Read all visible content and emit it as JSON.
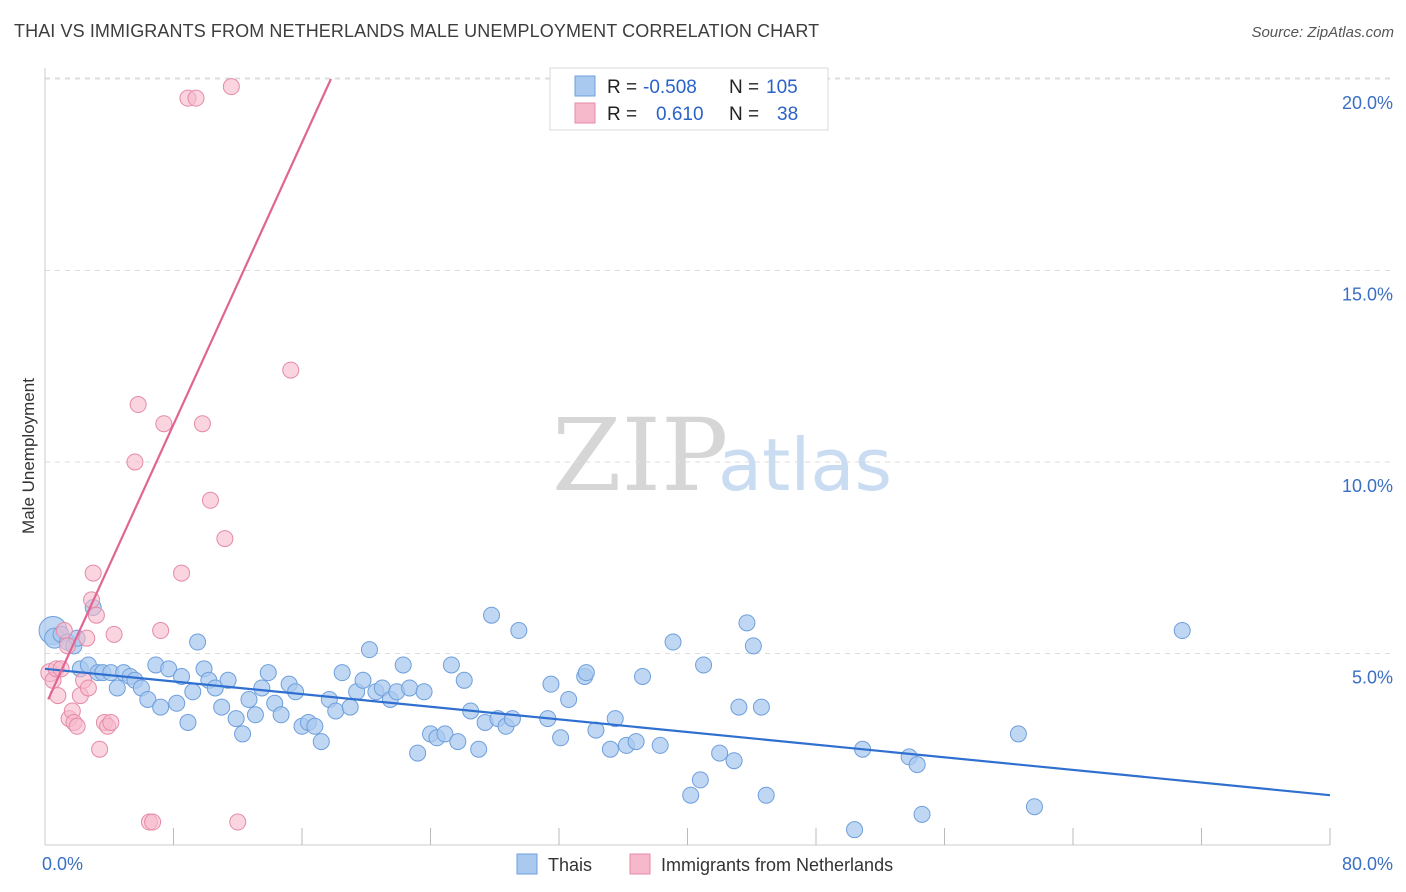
{
  "header": {
    "title": "THAI VS IMMIGRANTS FROM NETHERLANDS MALE UNEMPLOYMENT CORRELATION CHART",
    "source": "Source: ZipAtlas.com"
  },
  "watermark": {
    "zip": "ZIP",
    "atlas": "atlas"
  },
  "legend": {
    "rows": [
      {
        "r_label": "R =",
        "r_value": "-0.508",
        "n_label": "N =",
        "n_value": "105",
        "color": "#aac9ef"
      },
      {
        "r_label": "R =",
        "r_value": "0.610",
        "n_label": "N =",
        "n_value": "38",
        "color": "#f6b9cc"
      }
    ]
  },
  "bottom_legend": [
    {
      "label": "Thais",
      "color": "#aac9ef"
    },
    {
      "label": "Immigrants from Netherlands",
      "color": "#f6b9cc"
    }
  ],
  "colors": {
    "blue_fill": "#aac9ef",
    "blue_stroke": "#6f9fdc",
    "blue_line": "#2f6fd0",
    "pink_fill": "#f6b9cc",
    "pink_stroke": "#e58aa8",
    "pink_line": "#e06592",
    "grid": "#dddddd",
    "tick_text": "#3a6fc4"
  },
  "chart_data": {
    "type": "scatter",
    "title": "THAI VS IMMIGRANTS FROM NETHERLANDS MALE UNEMPLOYMENT CORRELATION CHART",
    "xlabel": "",
    "ylabel": "Male Unemployment",
    "xlim": [
      0,
      80
    ],
    "ylim": [
      0,
      20
    ],
    "x_tick_labels": [
      {
        "value": 0,
        "label": "0.0%"
      },
      {
        "value": 80,
        "label": "80.0%"
      }
    ],
    "x_minor_ticks": [
      8,
      16,
      24,
      32,
      40,
      48,
      56,
      64,
      72,
      80
    ],
    "y_ticks": [
      {
        "value": 5,
        "label": "5.0%"
      },
      {
        "value": 10,
        "label": "10.0%"
      },
      {
        "value": 15,
        "label": "15.0%"
      },
      {
        "value": 20,
        "label": "20.0%"
      }
    ],
    "grid": true,
    "legend_position": "top-center",
    "series": [
      {
        "name": "Thais",
        "color": "#aac9ef",
        "trend": {
          "x": [
            0,
            80
          ],
          "y": [
            4.6,
            1.3
          ]
        },
        "points": [
          [
            0.5,
            5.6,
            14
          ],
          [
            0.6,
            5.4,
            10
          ],
          [
            1.0,
            5.5,
            8
          ],
          [
            1.4,
            5.3,
            8
          ],
          [
            1.8,
            5.2,
            8
          ],
          [
            2.0,
            5.4,
            8
          ],
          [
            2.2,
            4.6,
            8
          ],
          [
            2.7,
            4.7,
            8
          ],
          [
            3.0,
            6.2,
            8
          ],
          [
            3.3,
            4.5,
            8
          ],
          [
            3.6,
            4.5,
            8
          ],
          [
            4.1,
            4.5,
            8
          ],
          [
            4.5,
            4.1,
            8
          ],
          [
            4.9,
            4.5,
            8
          ],
          [
            5.3,
            4.4,
            8
          ],
          [
            5.6,
            4.3,
            8
          ],
          [
            6.0,
            4.1,
            8
          ],
          [
            6.4,
            3.8,
            8
          ],
          [
            6.9,
            4.7,
            8
          ],
          [
            7.2,
            3.6,
            8
          ],
          [
            7.7,
            4.6,
            8
          ],
          [
            8.2,
            3.7,
            8
          ],
          [
            8.5,
            4.4,
            8
          ],
          [
            8.9,
            3.2,
            8
          ],
          [
            9.2,
            4.0,
            8
          ],
          [
            9.5,
            5.3,
            8
          ],
          [
            9.9,
            4.6,
            8
          ],
          [
            10.2,
            4.3,
            8
          ],
          [
            10.6,
            4.1,
            8
          ],
          [
            11.0,
            3.6,
            8
          ],
          [
            11.4,
            4.3,
            8
          ],
          [
            11.9,
            3.3,
            8
          ],
          [
            12.3,
            2.9,
            8
          ],
          [
            12.7,
            3.8,
            8
          ],
          [
            13.1,
            3.4,
            8
          ],
          [
            13.5,
            4.1,
            8
          ],
          [
            13.9,
            4.5,
            8
          ],
          [
            14.3,
            3.7,
            8
          ],
          [
            14.7,
            3.4,
            8
          ],
          [
            15.2,
            4.2,
            8
          ],
          [
            15.6,
            4.0,
            8
          ],
          [
            16.0,
            3.1,
            8
          ],
          [
            16.4,
            3.2,
            8
          ],
          [
            16.8,
            3.1,
            8
          ],
          [
            17.2,
            2.7,
            8
          ],
          [
            17.7,
            3.8,
            8
          ],
          [
            18.1,
            3.5,
            8
          ],
          [
            18.5,
            4.5,
            8
          ],
          [
            19.0,
            3.6,
            8
          ],
          [
            19.4,
            4.0,
            8
          ],
          [
            19.8,
            4.3,
            8
          ],
          [
            20.2,
            5.1,
            8
          ],
          [
            20.6,
            4.0,
            8
          ],
          [
            21.0,
            4.1,
            8
          ],
          [
            21.5,
            3.8,
            8
          ],
          [
            21.9,
            4.0,
            8
          ],
          [
            22.3,
            4.7,
            8
          ],
          [
            22.7,
            4.1,
            8
          ],
          [
            23.2,
            2.4,
            8
          ],
          [
            23.6,
            4.0,
            8
          ],
          [
            24.0,
            2.9,
            8
          ],
          [
            24.4,
            2.8,
            8
          ],
          [
            24.9,
            2.9,
            8
          ],
          [
            25.3,
            4.7,
            8
          ],
          [
            25.7,
            2.7,
            8
          ],
          [
            26.1,
            4.3,
            8
          ],
          [
            26.5,
            3.5,
            8
          ],
          [
            27.0,
            2.5,
            8
          ],
          [
            27.4,
            3.2,
            8
          ],
          [
            27.8,
            6.0,
            8
          ],
          [
            28.2,
            3.3,
            8
          ],
          [
            28.7,
            3.1,
            8
          ],
          [
            29.1,
            3.3,
            8
          ],
          [
            29.5,
            5.6,
            8
          ],
          [
            31.3,
            3.3,
            8
          ],
          [
            31.5,
            4.2,
            8
          ],
          [
            32.1,
            2.8,
            8
          ],
          [
            32.6,
            3.8,
            8
          ],
          [
            33.6,
            4.4,
            8
          ],
          [
            33.7,
            4.5,
            8
          ],
          [
            34.3,
            3.0,
            8
          ],
          [
            35.2,
            2.5,
            8
          ],
          [
            35.5,
            3.3,
            8
          ],
          [
            36.2,
            2.6,
            8
          ],
          [
            36.8,
            2.7,
            8
          ],
          [
            37.2,
            4.4,
            8
          ],
          [
            38.3,
            2.6,
            8
          ],
          [
            39.1,
            5.3,
            8
          ],
          [
            40.2,
            1.3,
            8
          ],
          [
            40.8,
            1.7,
            8
          ],
          [
            41.0,
            4.7,
            8
          ],
          [
            42.0,
            2.4,
            8
          ],
          [
            42.9,
            2.2,
            8
          ],
          [
            43.2,
            3.6,
            8
          ],
          [
            43.7,
            5.8,
            8
          ],
          [
            44.1,
            5.2,
            8
          ],
          [
            44.6,
            3.6,
            8
          ],
          [
            44.9,
            1.3,
            8
          ],
          [
            50.4,
            0.4,
            8
          ],
          [
            50.9,
            2.5,
            8
          ],
          [
            53.8,
            2.3,
            8
          ],
          [
            54.3,
            2.1,
            8
          ],
          [
            54.6,
            0.8,
            8
          ],
          [
            60.6,
            2.9,
            8
          ],
          [
            61.6,
            1.0,
            8
          ],
          [
            70.8,
            5.6,
            8
          ]
        ]
      },
      {
        "name": "Immigrants from Netherlands",
        "color": "#f6b9cc",
        "trend": {
          "x": [
            0.2,
            17.8
          ],
          "y": [
            3.8,
            20.0
          ]
        },
        "points": [
          [
            0.3,
            4.5,
            9
          ],
          [
            0.5,
            4.3,
            8
          ],
          [
            0.7,
            4.6,
            8
          ],
          [
            0.8,
            3.9,
            8
          ],
          [
            1.0,
            4.6,
            8
          ],
          [
            1.2,
            5.6,
            8
          ],
          [
            1.4,
            5.2,
            8
          ],
          [
            1.5,
            3.3,
            8
          ],
          [
            1.7,
            3.5,
            8
          ],
          [
            1.8,
            3.2,
            8
          ],
          [
            2.0,
            3.1,
            8
          ],
          [
            2.2,
            3.9,
            8
          ],
          [
            2.4,
            4.3,
            8
          ],
          [
            2.6,
            5.4,
            8
          ],
          [
            2.7,
            4.1,
            8
          ],
          [
            2.9,
            6.4,
            8
          ],
          [
            3.0,
            7.1,
            8
          ],
          [
            3.2,
            6.0,
            8
          ],
          [
            3.4,
            2.5,
            8
          ],
          [
            3.7,
            3.2,
            8
          ],
          [
            3.9,
            3.1,
            8
          ],
          [
            4.1,
            3.2,
            8
          ],
          [
            4.3,
            5.5,
            8
          ],
          [
            5.6,
            10.0,
            8
          ],
          [
            5.8,
            11.5,
            8
          ],
          [
            6.5,
            0.6,
            8
          ],
          [
            6.7,
            0.6,
            8
          ],
          [
            7.2,
            5.6,
            8
          ],
          [
            7.4,
            11.0,
            8
          ],
          [
            8.5,
            7.1,
            8
          ],
          [
            8.9,
            19.5,
            8
          ],
          [
            9.4,
            19.5,
            8
          ],
          [
            9.8,
            11.0,
            8
          ],
          [
            10.3,
            9.0,
            8
          ],
          [
            11.2,
            8.0,
            8
          ],
          [
            11.6,
            19.8,
            8
          ],
          [
            12.0,
            0.6,
            8
          ],
          [
            15.3,
            12.4,
            8
          ]
        ]
      }
    ]
  }
}
